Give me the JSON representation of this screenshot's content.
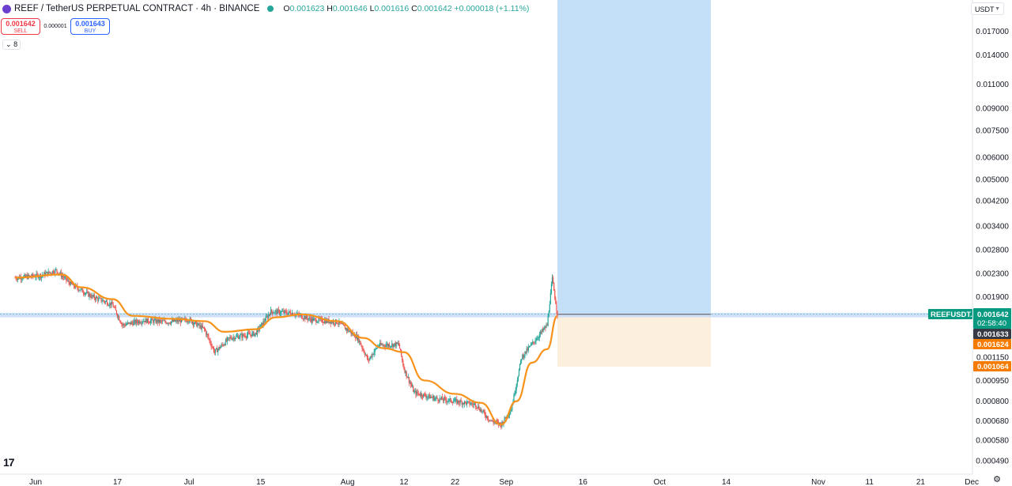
{
  "header": {
    "title": "REEF / TetherUS PERPETUAL CONTRACT · 4h · BINANCE",
    "ohlc": [
      {
        "k": "O",
        "v": "0.001623"
      },
      {
        "k": "H",
        "v": "0.001646"
      },
      {
        "k": "L",
        "v": "0.001616"
      },
      {
        "k": "C",
        "v": "0.001642"
      },
      {
        "k": "",
        "v": "+0.000018 (+1.11%)"
      }
    ]
  },
  "trade": {
    "sell_price": "0.001642",
    "sell_label": "SELL",
    "spread": "0.000001",
    "buy_price": "0.001643",
    "buy_label": "BUY"
  },
  "indicator_toggle": "8",
  "currency": "USDT",
  "logo_text": "17",
  "gear_icon": "settings-icon",
  "colors": {
    "up": "#26a69a",
    "down": "#ef5350",
    "ma": "#f7931a",
    "target_zone": "#c4e0f9",
    "stop_zone": "#fcefde",
    "band": "#c9daf8",
    "symbol_badge": "#089981",
    "avg_badge": "#363a45",
    "stop_badge": "#f57c00"
  },
  "chart_data": {
    "type": "candlestick",
    "scale": "log",
    "y_ticks": [
      "0.017000",
      "0.014000",
      "0.011000",
      "0.009000",
      "0.007500",
      "0.006000",
      "0.005000",
      "0.004200",
      "0.003400",
      "0.002800",
      "0.002300",
      "0.001900",
      "0.001150",
      "0.000950",
      "0.000800",
      "0.000680",
      "0.000580",
      "0.000490"
    ],
    "x_ticks": [
      "Jun",
      "17",
      "Jul",
      "15",
      "Aug",
      "12",
      "22",
      "Sep",
      "16",
      "Oct",
      "14",
      "Nov",
      "11",
      "21",
      "Dec"
    ],
    "x_tick_dates": [
      "2024-06-01",
      "2024-06-17",
      "2024-07-01",
      "2024-07-15",
      "2024-08-01",
      "2024-08-12",
      "2024-08-22",
      "2024-09-01",
      "2024-09-16",
      "2024-10-01",
      "2024-10-14",
      "2024-11-01",
      "2024-11-11",
      "2024-11-21",
      "2024-12-01"
    ],
    "price_path": [
      [
        "2024-05-28",
        0.00222
      ],
      [
        "2024-06-02",
        0.00226
      ],
      [
        "2024-06-05",
        0.00236
      ],
      [
        "2024-06-08",
        0.0021
      ],
      [
        "2024-06-12",
        0.0019
      ],
      [
        "2024-06-16",
        0.00178
      ],
      [
        "2024-06-18",
        0.0015
      ],
      [
        "2024-06-22",
        0.00156
      ],
      [
        "2024-06-27",
        0.00154
      ],
      [
        "2024-07-01",
        0.00157
      ],
      [
        "2024-07-04",
        0.00145
      ],
      [
        "2024-07-06",
        0.0012
      ],
      [
        "2024-07-09",
        0.00135
      ],
      [
        "2024-07-14",
        0.0014
      ],
      [
        "2024-07-17",
        0.00168
      ],
      [
        "2024-07-21",
        0.00166
      ],
      [
        "2024-07-25",
        0.00157
      ],
      [
        "2024-07-30",
        0.00154
      ],
      [
        "2024-08-03",
        0.00135
      ],
      [
        "2024-08-05",
        0.00112
      ],
      [
        "2024-08-07",
        0.00127
      ],
      [
        "2024-08-11",
        0.00128
      ],
      [
        "2024-08-12",
        0.00105
      ],
      [
        "2024-08-14",
        0.00086
      ],
      [
        "2024-08-18",
        0.00082
      ],
      [
        "2024-08-22",
        0.0008
      ],
      [
        "2024-08-26",
        0.00078
      ],
      [
        "2024-08-29",
        0.00068
      ],
      [
        "2024-08-31",
        0.00066
      ],
      [
        "2024-09-02",
        0.00075
      ],
      [
        "2024-09-04",
        0.00115
      ],
      [
        "2024-09-06",
        0.00128
      ],
      [
        "2024-09-09",
        0.0015
      ],
      [
        "2024-09-10",
        0.0022
      ],
      [
        "2024-09-11",
        0.00164
      ]
    ],
    "moving_average": [
      [
        "2024-05-28",
        0.00222
      ],
      [
        "2024-06-06",
        0.00228
      ],
      [
        "2024-06-10",
        0.00205
      ],
      [
        "2024-06-16",
        0.00186
      ],
      [
        "2024-06-20",
        0.00162
      ],
      [
        "2024-06-28",
        0.00158
      ],
      [
        "2024-07-04",
        0.00155
      ],
      [
        "2024-07-08",
        0.00142
      ],
      [
        "2024-07-14",
        0.00145
      ],
      [
        "2024-07-18",
        0.0016
      ],
      [
        "2024-07-23",
        0.00164
      ],
      [
        "2024-07-30",
        0.00155
      ],
      [
        "2024-08-04",
        0.00135
      ],
      [
        "2024-08-08",
        0.00124
      ],
      [
        "2024-08-12",
        0.0012
      ],
      [
        "2024-08-16",
        0.00095
      ],
      [
        "2024-08-22",
        0.00085
      ],
      [
        "2024-08-27",
        0.00079
      ],
      [
        "2024-08-31",
        0.00066
      ],
      [
        "2024-09-03",
        0.0008
      ],
      [
        "2024-09-06",
        0.0011
      ],
      [
        "2024-09-09",
        0.00123
      ],
      [
        "2024-09-11",
        0.00162
      ]
    ],
    "position": {
      "entry": 0.00164,
      "target": 0.02,
      "stop": 0.001064,
      "start": "2024-09-11",
      "end": "2024-10-11"
    },
    "band": {
      "low": 0.0016,
      "high": 0.00166
    },
    "labels": {
      "symbol": "REEFUSDT.P",
      "last": "0.001642",
      "countdown": "02:58:40",
      "avg": "0.001633",
      "level": "0.001624",
      "stop": "0.001064"
    }
  }
}
